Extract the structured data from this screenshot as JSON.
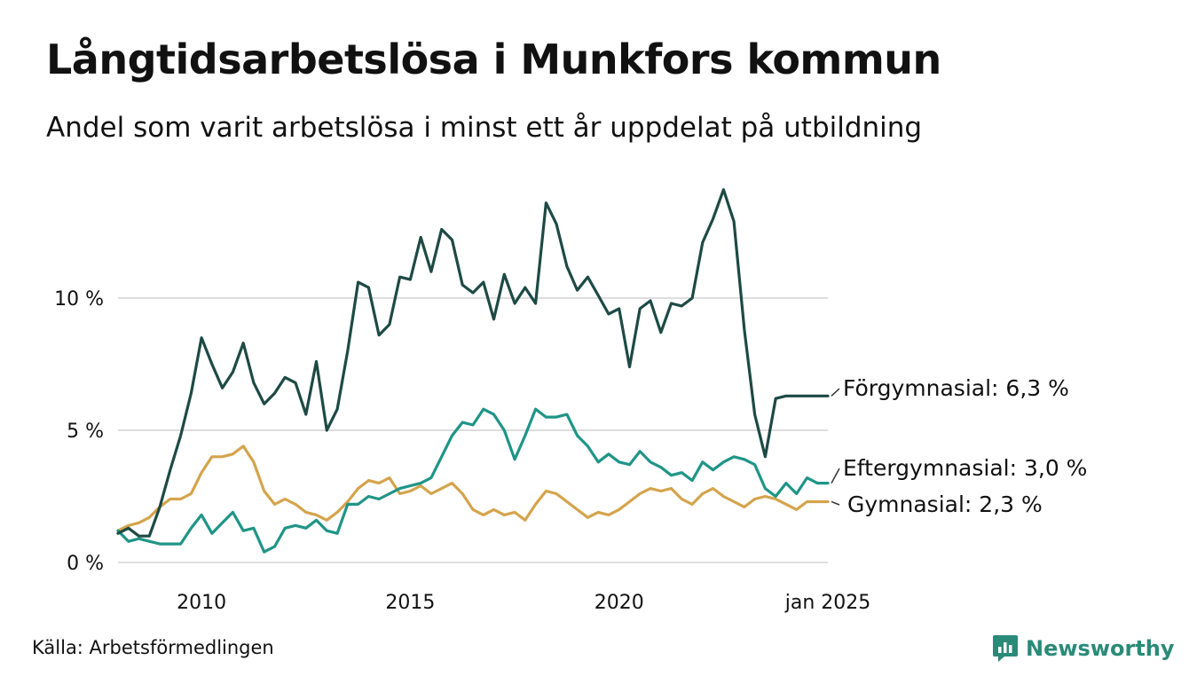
{
  "title": "Långtidsarbetslösa i Munkfors kommun",
  "subtitle": "Andel som varit arbetslösa i minst ett år uppdelat på utbildning",
  "source": "Källa: Arbetsförmedlingen",
  "brand": "Newsworthy",
  "colors": {
    "forgymnasial": "#1d4a44",
    "eftergymnasial": "#1f9587",
    "gymnasial": "#d4a44c",
    "grid": "#dddddd",
    "brand": "#2a8a78"
  },
  "chart_data": {
    "type": "line",
    "title": "Långtidsarbetslösa i Munkfors kommun",
    "xlabel": "",
    "ylabel": "",
    "x_range": [
      2008.0,
      2025.0
    ],
    "ylim": [
      0,
      14.5
    ],
    "y_ticks": [
      0,
      5,
      10
    ],
    "y_tick_labels": [
      "0 %",
      "5 %",
      "10 %"
    ],
    "x_ticks": [
      2010,
      2015,
      2020,
      2025
    ],
    "x_tick_labels": [
      "2010",
      "2015",
      "2020",
      "jan 2025"
    ],
    "grid": true,
    "legend": "end-of-line labels",
    "series": [
      {
        "name": "Förgymnasial",
        "label": "Förgymnasial: 6,3 %",
        "color": "#1d4a44",
        "x": [
          2008.0,
          2008.25,
          2008.5,
          2008.75,
          2009.0,
          2009.25,
          2009.5,
          2009.75,
          2010.0,
          2010.25,
          2010.5,
          2010.75,
          2011.0,
          2011.25,
          2011.5,
          2011.75,
          2012.0,
          2012.25,
          2012.5,
          2012.75,
          2013.0,
          2013.25,
          2013.5,
          2013.75,
          2014.0,
          2014.25,
          2014.5,
          2014.75,
          2015.0,
          2015.25,
          2015.5,
          2015.75,
          2016.0,
          2016.25,
          2016.5,
          2016.75,
          2017.0,
          2017.25,
          2017.5,
          2017.75,
          2018.0,
          2018.25,
          2018.5,
          2018.75,
          2019.0,
          2019.25,
          2019.5,
          2019.75,
          2020.0,
          2020.25,
          2020.5,
          2020.75,
          2021.0,
          2021.25,
          2021.5,
          2021.75,
          2022.0,
          2022.25,
          2022.5,
          2022.75,
          2023.0,
          2023.25,
          2023.5,
          2023.75,
          2024.0,
          2024.25,
          2024.5,
          2024.75,
          2025.0
        ],
        "values": [
          1.1,
          1.3,
          1.0,
          1.0,
          2.1,
          3.5,
          4.8,
          6.4,
          8.5,
          7.5,
          6.6,
          7.2,
          8.3,
          6.8,
          6.0,
          6.4,
          7.0,
          6.8,
          5.6,
          7.6,
          5.0,
          5.8,
          8.0,
          10.6,
          10.4,
          8.6,
          9.0,
          10.8,
          10.7,
          12.3,
          11.0,
          12.6,
          12.2,
          10.5,
          10.2,
          10.6,
          9.2,
          10.9,
          9.8,
          10.4,
          9.8,
          13.6,
          12.8,
          11.2,
          10.3,
          10.8,
          10.1,
          9.4,
          9.6,
          7.4,
          9.6,
          9.9,
          8.7,
          9.8,
          9.7,
          10.0,
          12.1,
          13.0,
          14.1,
          12.9,
          8.8,
          5.6,
          4.0,
          6.2,
          6.3,
          6.3,
          6.3,
          6.3,
          6.3
        ]
      },
      {
        "name": "Eftergymnasial",
        "label": "Eftergymnasial: 3,0 %",
        "color": "#1f9587",
        "x": [
          2008.0,
          2008.25,
          2008.5,
          2008.75,
          2009.0,
          2009.25,
          2009.5,
          2009.75,
          2010.0,
          2010.25,
          2010.5,
          2010.75,
          2011.0,
          2011.25,
          2011.5,
          2011.75,
          2012.0,
          2012.25,
          2012.5,
          2012.75,
          2013.0,
          2013.25,
          2013.5,
          2013.75,
          2014.0,
          2014.25,
          2014.5,
          2014.75,
          2015.0,
          2015.25,
          2015.5,
          2015.75,
          2016.0,
          2016.25,
          2016.5,
          2016.75,
          2017.0,
          2017.25,
          2017.5,
          2017.75,
          2018.0,
          2018.25,
          2018.5,
          2018.75,
          2019.0,
          2019.25,
          2019.5,
          2019.75,
          2020.0,
          2020.25,
          2020.5,
          2020.75,
          2021.0,
          2021.25,
          2021.5,
          2021.75,
          2022.0,
          2022.25,
          2022.5,
          2022.75,
          2023.0,
          2023.25,
          2023.5,
          2023.75,
          2024.0,
          2024.25,
          2024.5,
          2024.75,
          2025.0
        ],
        "values": [
          1.2,
          0.8,
          0.9,
          0.8,
          0.7,
          0.7,
          0.7,
          1.3,
          1.8,
          1.1,
          1.5,
          1.9,
          1.2,
          1.3,
          0.4,
          0.6,
          1.3,
          1.4,
          1.3,
          1.6,
          1.2,
          1.1,
          2.2,
          2.2,
          2.5,
          2.4,
          2.6,
          2.8,
          2.9,
          3.0,
          3.2,
          4.0,
          4.8,
          5.3,
          5.2,
          5.8,
          5.6,
          5.0,
          3.9,
          4.8,
          5.8,
          5.5,
          5.5,
          5.6,
          4.8,
          4.4,
          3.8,
          4.1,
          3.8,
          3.7,
          4.2,
          3.8,
          3.6,
          3.3,
          3.4,
          3.1,
          3.8,
          3.5,
          3.8,
          4.0,
          3.9,
          3.7,
          2.8,
          2.5,
          3.0,
          2.6,
          3.2,
          3.0,
          3.0
        ]
      },
      {
        "name": "Gymnasial",
        "label": "Gymnasial: 2,3 %",
        "color": "#d4a44c",
        "x": [
          2008.0,
          2008.25,
          2008.5,
          2008.75,
          2009.0,
          2009.25,
          2009.5,
          2009.75,
          2010.0,
          2010.25,
          2010.5,
          2010.75,
          2011.0,
          2011.25,
          2011.5,
          2011.75,
          2012.0,
          2012.25,
          2012.5,
          2012.75,
          2013.0,
          2013.25,
          2013.5,
          2013.75,
          2014.0,
          2014.25,
          2014.5,
          2014.75,
          2015.0,
          2015.25,
          2015.5,
          2015.75,
          2016.0,
          2016.25,
          2016.5,
          2016.75,
          2017.0,
          2017.25,
          2017.5,
          2017.75,
          2018.0,
          2018.25,
          2018.5,
          2018.75,
          2019.0,
          2019.25,
          2019.5,
          2019.75,
          2020.0,
          2020.25,
          2020.5,
          2020.75,
          2021.0,
          2021.25,
          2021.5,
          2021.75,
          2022.0,
          2022.25,
          2022.5,
          2022.75,
          2023.0,
          2023.25,
          2023.5,
          2023.75,
          2024.0,
          2024.25,
          2024.5,
          2024.75,
          2025.0
        ],
        "values": [
          1.2,
          1.4,
          1.5,
          1.7,
          2.1,
          2.4,
          2.4,
          2.6,
          3.4,
          4.0,
          4.0,
          4.1,
          4.4,
          3.8,
          2.7,
          2.2,
          2.4,
          2.2,
          1.9,
          1.8,
          1.6,
          1.9,
          2.3,
          2.8,
          3.1,
          3.0,
          3.2,
          2.6,
          2.7,
          2.9,
          2.6,
          2.8,
          3.0,
          2.6,
          2.0,
          1.8,
          2.0,
          1.8,
          1.9,
          1.6,
          2.2,
          2.7,
          2.6,
          2.3,
          2.0,
          1.7,
          1.9,
          1.8,
          2.0,
          2.3,
          2.6,
          2.8,
          2.7,
          2.8,
          2.4,
          2.2,
          2.6,
          2.8,
          2.5,
          2.3,
          2.1,
          2.4,
          2.5,
          2.4,
          2.2,
          2.0,
          2.3,
          2.3,
          2.3
        ]
      }
    ]
  }
}
